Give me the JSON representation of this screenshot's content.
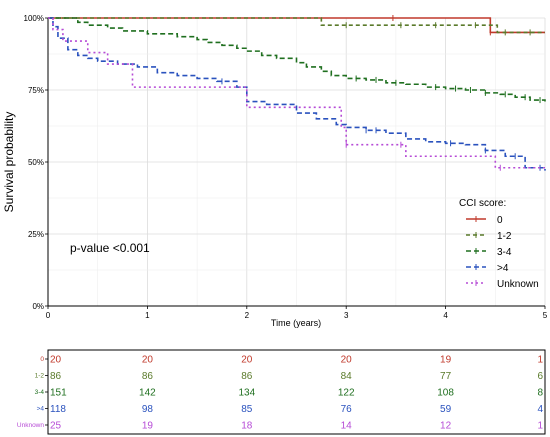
{
  "chart_data": {
    "type": "line",
    "step": true,
    "ylabel": "Survival probability",
    "xlabel": "Time (years)",
    "xlim": [
      0,
      5
    ],
    "ylim": [
      0,
      1
    ],
    "x_ticks": [
      "0",
      "1",
      "2",
      "3",
      "4",
      "5"
    ],
    "y_ticks": [
      "0%",
      "25%",
      "50%",
      "75%",
      "100%"
    ],
    "grid": true,
    "legend_title": "CCI score:",
    "legend_position": "right",
    "annotation": "p-value <0.001",
    "series": [
      {
        "name": "0",
        "color": "#c0392b",
        "dash": "solid",
        "x": [
          0,
          4.45,
          4.45,
          5
        ],
        "y": [
          1.0,
          1.0,
          0.95,
          0.95
        ],
        "censor_x": [
          3.47,
          4.45
        ]
      },
      {
        "name": "1-2",
        "color": "#5a7a2a",
        "dash": "4,3",
        "x": [
          0,
          2.75,
          2.75,
          4.52,
          4.52,
          5
        ],
        "y": [
          1.0,
          1.0,
          0.975,
          0.975,
          0.95,
          0.95
        ],
        "censor_x": [
          3.0,
          3.55,
          3.9,
          4.3,
          4.6,
          4.85
        ]
      },
      {
        "name": "3-4",
        "color": "#1f6f1f",
        "dash": "5,3",
        "x": [
          0,
          0.3,
          0.4,
          0.6,
          0.75,
          1.0,
          1.3,
          1.5,
          1.6,
          1.75,
          1.9,
          2.0,
          2.15,
          2.3,
          2.5,
          2.6,
          2.75,
          2.85,
          3.0,
          3.2,
          3.4,
          3.6,
          3.8,
          4.0,
          4.2,
          4.4,
          4.55,
          4.7,
          4.85,
          5.0
        ],
        "y": [
          1.0,
          0.985,
          0.975,
          0.965,
          0.955,
          0.945,
          0.935,
          0.925,
          0.915,
          0.905,
          0.895,
          0.885,
          0.87,
          0.86,
          0.845,
          0.83,
          0.815,
          0.8,
          0.79,
          0.785,
          0.775,
          0.77,
          0.76,
          0.755,
          0.75,
          0.74,
          0.735,
          0.725,
          0.715,
          0.71
        ],
        "censor_x": [
          3.1,
          3.3,
          3.5,
          3.9,
          4.1,
          4.25,
          4.4,
          4.6,
          4.8,
          4.95
        ]
      },
      {
        "name": ">4",
        "color": "#2a52be",
        "dash": "5,3",
        "x": [
          0,
          0.05,
          0.1,
          0.2,
          0.3,
          0.4,
          0.5,
          0.7,
          0.9,
          1.1,
          1.3,
          1.5,
          1.7,
          1.9,
          2.0,
          2.2,
          2.5,
          2.7,
          2.9,
          3.0,
          3.2,
          3.4,
          3.6,
          3.8,
          4.0,
          4.2,
          4.4,
          4.6,
          4.8,
          5.0
        ],
        "y": [
          1.0,
          0.97,
          0.93,
          0.89,
          0.87,
          0.86,
          0.85,
          0.84,
          0.83,
          0.81,
          0.8,
          0.79,
          0.78,
          0.76,
          0.71,
          0.7,
          0.67,
          0.65,
          0.63,
          0.62,
          0.61,
          0.6,
          0.58,
          0.57,
          0.565,
          0.56,
          0.54,
          0.52,
          0.48,
          0.47
        ],
        "censor_x": [
          1.75,
          3.2,
          3.3,
          4.05,
          4.4,
          4.7,
          4.95
        ]
      },
      {
        "name": "Unknown",
        "color": "#b64bd6",
        "dash": "2,3",
        "x": [
          0,
          0.05,
          0.15,
          0.4,
          0.6,
          0.85,
          1.4,
          2.0,
          2.8,
          2.95,
          3.0,
          3.6,
          3.6,
          4.5,
          4.5,
          5
        ],
        "y": [
          1.0,
          0.96,
          0.92,
          0.88,
          0.84,
          0.76,
          0.76,
          0.69,
          0.69,
          0.62,
          0.56,
          0.56,
          0.52,
          0.52,
          0.48,
          0.48
        ],
        "censor_x": [
          3.0,
          3.55,
          4.55
        ]
      }
    ],
    "risk_table": {
      "groups": [
        "0",
        "1-2",
        "3-4",
        ">4",
        "Unknown"
      ],
      "times": [
        0,
        1,
        2,
        3,
        4,
        5
      ],
      "rows": [
        [
          "20",
          "20",
          "20",
          "20",
          "19",
          "1"
        ],
        [
          "86",
          "86",
          "86",
          "84",
          "77",
          "6"
        ],
        [
          "151",
          "142",
          "134",
          "122",
          "108",
          "8"
        ],
        [
          "118",
          "98",
          "85",
          "76",
          "59",
          "4"
        ],
        [
          "25",
          "19",
          "18",
          "14",
          "12",
          "1"
        ]
      ]
    }
  }
}
